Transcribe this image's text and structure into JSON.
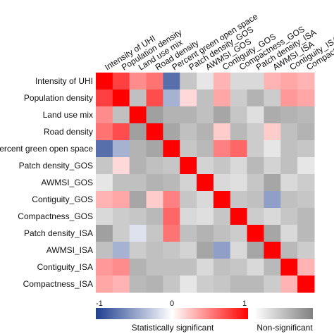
{
  "chart_data": {
    "type": "heatmap",
    "variables": [
      "Intensity of UHI",
      "Population density",
      "Land use mix",
      "Road density",
      "Percent green open space",
      "Patch density_GOS",
      "AWMSI_GOS",
      "Contiguity_GOS",
      "Compactness_GOS",
      "Patch density_ISA",
      "AWMSI_ISA",
      "Contiguity_ISA",
      "Compactness_ISA"
    ],
    "color_scale": {
      "min": -1,
      "max": 1,
      "ticks": [
        "-1",
        "0",
        "1"
      ],
      "negative_color": "#1f3f8f",
      "zero_color": "#ffffff",
      "positive_color": "#ff0000",
      "nonsignificant_colors": [
        "#ffffff",
        "#808080"
      ]
    },
    "legend": {
      "significant_label": "Statistically significant",
      "nonsignificant_label": "Non-significant"
    },
    "matrix": [
      [
        {
          "v": 1,
          "s": true
        },
        {
          "v": 0.75,
          "s": true
        },
        {
          "v": 0.45,
          "s": true
        },
        {
          "v": 0.55,
          "s": true
        },
        {
          "v": -0.75,
          "s": true
        },
        {
          "v": 0.45,
          "n": true
        },
        {
          "v": 0.2,
          "n": true
        },
        {
          "v": 0.3,
          "s": true
        },
        {
          "v": 0.3,
          "n": true
        },
        {
          "v": 0.3,
          "n": true
        },
        {
          "v": 0.3,
          "s": true
        },
        {
          "v": 0.35,
          "s": true
        },
        {
          "v": 0.3,
          "s": true
        }
      ],
      [
        {
          "v": 0.75,
          "s": true
        },
        {
          "v": 1,
          "s": true
        },
        {
          "v": 0.5,
          "n": true
        },
        {
          "v": 0.7,
          "s": true
        },
        {
          "v": -0.4,
          "s": true
        },
        {
          "v": 0.15,
          "s": true
        },
        {
          "v": 0.5,
          "n": true
        },
        {
          "v": 0.35,
          "s": true
        },
        {
          "v": 0.4,
          "n": true
        },
        {
          "v": 0.6,
          "n": true
        },
        {
          "v": 0.4,
          "n": true
        },
        {
          "v": 0.4,
          "s": true
        },
        {
          "v": 0.35,
          "s": true
        }
      ],
      [
        {
          "v": 0.45,
          "s": true
        },
        {
          "v": 0.5,
          "n": true
        },
        {
          "v": 1,
          "s": true
        },
        {
          "v": 0.75,
          "n": true
        },
        {
          "v": 0.6,
          "n": true
        },
        {
          "v": 0.6,
          "n": true
        },
        {
          "v": 0.5,
          "n": true
        },
        {
          "v": 0.7,
          "n": true
        },
        {
          "v": 0.45,
          "n": true
        },
        {
          "v": 0.25,
          "n": true
        },
        {
          "v": 0.65,
          "n": true
        },
        {
          "v": 0.6,
          "n": true
        },
        {
          "v": 0.55,
          "n": true
        }
      ],
      [
        {
          "v": 0.55,
          "s": true
        },
        {
          "v": 0.7,
          "s": true
        },
        {
          "v": 0.75,
          "n": true
        },
        {
          "v": 1,
          "s": true
        },
        {
          "v": 0.7,
          "n": true
        },
        {
          "v": 0.5,
          "n": true
        },
        {
          "v": 0.6,
          "n": true
        },
        {
          "v": 0.2,
          "s": true
        },
        {
          "v": 0.55,
          "n": true
        },
        {
          "v": 0.4,
          "n": true
        },
        {
          "v": 0.2,
          "s": true
        },
        {
          "v": 0.5,
          "n": true
        },
        {
          "v": 0.6,
          "n": true
        }
      ],
      [
        {
          "v": -0.75,
          "s": true
        },
        {
          "v": -0.4,
          "s": true
        },
        {
          "v": 0.6,
          "n": true
        },
        {
          "v": 0.7,
          "n": true
        },
        {
          "v": 1,
          "s": true
        },
        {
          "v": 0.45,
          "n": true
        },
        {
          "v": 0.55,
          "n": true
        },
        {
          "v": 0.5,
          "s": true
        },
        {
          "v": 0.6,
          "s": true
        },
        {
          "v": 0.4,
          "n": true
        },
        {
          "v": 0.2,
          "n": true
        },
        {
          "v": 0.5,
          "n": true
        },
        {
          "v": 0.45,
          "n": true
        }
      ],
      [
        {
          "v": 0.45,
          "n": true
        },
        {
          "v": 0.15,
          "s": true
        },
        {
          "v": 0.6,
          "n": true
        },
        {
          "v": 0.5,
          "n": true
        },
        {
          "v": 0.45,
          "n": true
        },
        {
          "v": 1,
          "s": true
        },
        {
          "v": 0.35,
          "n": true
        },
        {
          "v": 0.45,
          "n": true
        },
        {
          "v": 0.3,
          "n": true
        },
        {
          "v": 0.55,
          "n": true
        },
        {
          "v": 0.35,
          "n": true
        },
        {
          "v": 0.5,
          "n": true
        },
        {
          "v": 0.2,
          "n": true
        }
      ],
      [
        {
          "v": 0.2,
          "n": true
        },
        {
          "v": 0.5,
          "n": true
        },
        {
          "v": 0.5,
          "n": true
        },
        {
          "v": 0.6,
          "n": true
        },
        {
          "v": 0.55,
          "n": true
        },
        {
          "v": 0.35,
          "n": true
        },
        {
          "v": 1,
          "s": true
        },
        {
          "v": 0.3,
          "n": true
        },
        {
          "v": 0.25,
          "n": true
        },
        {
          "v": 0.45,
          "n": true
        },
        {
          "v": 0.7,
          "n": true
        },
        {
          "v": 0.3,
          "n": true
        },
        {
          "v": 0.4,
          "n": true
        }
      ],
      [
        {
          "v": 0.3,
          "s": true
        },
        {
          "v": 0.35,
          "s": true
        },
        {
          "v": 0.7,
          "n": true
        },
        {
          "v": 0.2,
          "s": true
        },
        {
          "v": 0.5,
          "s": true
        },
        {
          "v": 0.45,
          "n": true
        },
        {
          "v": 0.3,
          "n": true
        },
        {
          "v": 1,
          "s": true
        },
        {
          "v": 0.45,
          "n": true
        },
        {
          "v": 0.5,
          "n": true
        },
        {
          "v": -0.5,
          "s": true
        },
        {
          "v": 0.5,
          "n": true
        },
        {
          "v": 0.45,
          "n": true
        }
      ],
      [
        {
          "v": 0.3,
          "n": true
        },
        {
          "v": 0.4,
          "n": true
        },
        {
          "v": 0.45,
          "n": true
        },
        {
          "v": 0.55,
          "n": true
        },
        {
          "v": 0.6,
          "s": true
        },
        {
          "v": 0.3,
          "n": true
        },
        {
          "v": 0.25,
          "n": true
        },
        {
          "v": 0.45,
          "n": true
        },
        {
          "v": 1,
          "s": true
        },
        {
          "v": 0.4,
          "n": true
        },
        {
          "v": 0.3,
          "n": true
        },
        {
          "v": 0.45,
          "n": true
        },
        {
          "v": 0.55,
          "n": true
        }
      ],
      [
        {
          "v": 0.75,
          "n": true
        },
        {
          "v": 0.4,
          "n": true
        },
        {
          "v": -0.15,
          "s": true
        },
        {
          "v": 0.45,
          "n": true
        },
        {
          "v": 0.55,
          "s": true
        },
        {
          "v": 0.5,
          "n": true
        },
        {
          "v": 0.6,
          "n": true
        },
        {
          "v": 0.5,
          "n": true
        },
        {
          "v": 0.4,
          "n": true
        },
        {
          "v": 1,
          "s": true
        },
        {
          "v": 0.7,
          "n": true
        },
        {
          "v": 0.3,
          "n": true
        },
        {
          "v": 0.55,
          "n": true
        }
      ],
      [
        {
          "v": 0.5,
          "n": true
        },
        {
          "v": -0.4,
          "s": true
        },
        {
          "v": 0.4,
          "n": true
        },
        {
          "v": 0.5,
          "n": true
        },
        {
          "v": 0.45,
          "n": true
        },
        {
          "v": 0.35,
          "n": true
        },
        {
          "v": 0.7,
          "n": true
        },
        {
          "v": -0.5,
          "s": true
        },
        {
          "v": 0.3,
          "n": true
        },
        {
          "v": 0.7,
          "n": true
        },
        {
          "v": 1,
          "s": true
        },
        {
          "v": 0.55,
          "n": true
        },
        {
          "v": 0.4,
          "n": true
        }
      ],
      [
        {
          "v": 0.4,
          "s": true
        },
        {
          "v": 0.45,
          "s": true
        },
        {
          "v": 0.6,
          "n": true
        },
        {
          "v": 0.5,
          "n": true
        },
        {
          "v": 0.5,
          "n": true
        },
        {
          "v": 0.5,
          "n": true
        },
        {
          "v": 0.3,
          "n": true
        },
        {
          "v": 0.5,
          "n": true
        },
        {
          "v": 0.45,
          "n": true
        },
        {
          "v": 0.3,
          "n": true
        },
        {
          "v": 0.55,
          "n": true
        },
        {
          "v": 1,
          "s": true
        },
        {
          "v": 0.3,
          "s": true
        }
      ],
      [
        {
          "v": 0.35,
          "s": true
        },
        {
          "v": 0.3,
          "s": true
        },
        {
          "v": 0.55,
          "n": true
        },
        {
          "v": 0.6,
          "n": true
        },
        {
          "v": 0.45,
          "n": true
        },
        {
          "v": 0.2,
          "n": true
        },
        {
          "v": 0.4,
          "n": true
        },
        {
          "v": 0.45,
          "n": true
        },
        {
          "v": 0.55,
          "n": true
        },
        {
          "v": 0.55,
          "n": true
        },
        {
          "v": 0.4,
          "n": true
        },
        {
          "v": 0.3,
          "s": true
        },
        {
          "v": 1,
          "s": true
        }
      ]
    ]
  }
}
